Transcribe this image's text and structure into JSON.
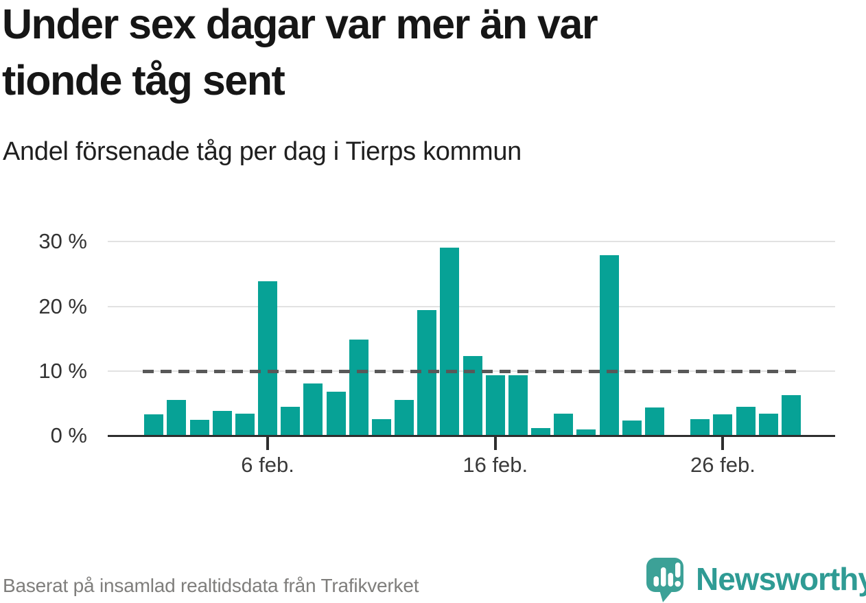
{
  "header": {
    "title_lines": [
      "Under sex dagar var mer än var",
      "tionde tåg sent"
    ],
    "title_full": "Under sex dagar var mer än var tionde tåg sent",
    "subtitle": "Andel försenade tåg per dag i Tierps kommun"
  },
  "footer": {
    "source": "Baserat på insamlad realtidsdata från Trafikverket",
    "brand_name": "Newsworthy",
    "brand_icon": "newsworthy-speech-bubble-bar-chart-icon"
  },
  "colors": {
    "bar": "#07a296",
    "reference_line": "#585858",
    "gridline": "#e2e2e2",
    "axis": "#2e2e2e",
    "title_text": "#161616",
    "source_text": "#7f7e7c",
    "brand_teal": "#2f9b94"
  },
  "chart_data": {
    "type": "bar",
    "title": "Under sex dagar var mer än var tionde tåg sent",
    "subtitle": "Andel försenade tåg per dag i Tierps kommun",
    "unit": "%",
    "categories": [
      "1 feb.",
      "2 feb.",
      "3 feb.",
      "4 feb.",
      "5 feb.",
      "6 feb.",
      "7 feb.",
      "8 feb.",
      "9 feb.",
      "10 feb.",
      "11 feb.",
      "12 feb.",
      "13 feb.",
      "14 feb.",
      "15 feb.",
      "16 feb.",
      "17 feb.",
      "18 feb.",
      "19 feb.",
      "20 feb.",
      "21 feb.",
      "22 feb.",
      "23 feb.",
      "24 feb.",
      "25 feb.",
      "26 feb.",
      "27 feb.",
      "28 feb.",
      "1 mars"
    ],
    "values": [
      3.3,
      5.5,
      2.4,
      3.8,
      3.4,
      23.9,
      4.5,
      8.1,
      6.8,
      14.9,
      2.6,
      5.5,
      19.4,
      29.1,
      12.3,
      9.3,
      9.3,
      1.2,
      3.4,
      1.0,
      27.9,
      2.3,
      4.3,
      null,
      2.5,
      3.3,
      4.5,
      3.4,
      6.3
    ],
    "missing_category": "24 feb.",
    "reference_line_value": 10,
    "ylim": [
      0,
      30
    ],
    "ytick_values": [
      0,
      10,
      20,
      30
    ],
    "ytick_labels": [
      "0 %",
      "10 %",
      "20 %",
      "30 %"
    ],
    "xticks": [
      {
        "index": 5,
        "label": "6 feb."
      },
      {
        "index": 15,
        "label": "16 feb."
      },
      {
        "index": 25,
        "label": "26 feb."
      }
    ],
    "grid": true,
    "legend": false
  }
}
